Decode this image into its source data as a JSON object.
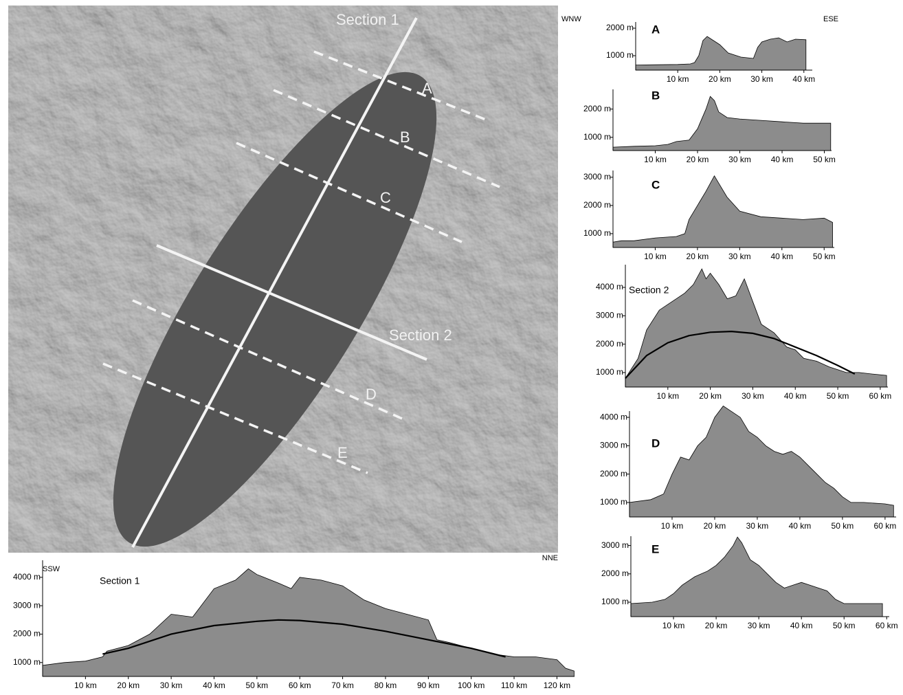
{
  "map": {
    "section_1": "Section 1",
    "section_2": "Section 2",
    "profile_labels": [
      "A",
      "B",
      "C",
      "D",
      "E"
    ]
  },
  "chart_data": [
    {
      "type": "area",
      "title": "A",
      "annotations": [
        "WNW",
        "ESE"
      ],
      "xlim": [
        0,
        42
      ],
      "ylim": [
        475,
        2225
      ],
      "xticks": [
        {
          "value": 10,
          "label": "10 km"
        },
        {
          "value": 20,
          "label": "20 km"
        },
        {
          "value": 30,
          "label": "30 km"
        },
        {
          "value": 40,
          "label": "40 km"
        }
      ],
      "yticks": [
        {
          "value": 1000,
          "label": "1000 m"
        },
        {
          "value": 2000,
          "label": "2000 m"
        }
      ],
      "series": [
        {
          "color": "#8c8c8c",
          "x": [
            0,
            5,
            10,
            13,
            14,
            15,
            16,
            17,
            18,
            19,
            20,
            22,
            25,
            28,
            29,
            30,
            32,
            34,
            36,
            38,
            40.5
          ],
          "values": [
            660,
            670,
            680,
            700,
            750,
            1000,
            1550,
            1700,
            1600,
            1500,
            1400,
            1100,
            950,
            900,
            1300,
            1500,
            1600,
            1650,
            1500,
            1600,
            1580
          ]
        }
      ]
    },
    {
      "type": "area",
      "title": "B",
      "xlim": [
        0,
        51.7
      ],
      "ylim": [
        530,
        2700
      ],
      "xticks": [
        {
          "value": 10,
          "label": "10 km"
        },
        {
          "value": 20,
          "label": "20 km"
        },
        {
          "value": 30,
          "label": "30 km"
        },
        {
          "value": 40,
          "label": "40 km"
        },
        {
          "value": 50,
          "label": "50 km"
        }
      ],
      "yticks": [
        {
          "value": 1000,
          "label": "1000 m"
        },
        {
          "value": 2000,
          "label": "2000 m"
        }
      ],
      "series": [
        {
          "color": "#8c8c8c",
          "x": [
            0,
            5,
            10,
            13,
            15,
            18,
            20,
            22,
            23,
            24,
            25,
            27,
            30,
            35,
            40,
            45,
            50,
            51.5
          ],
          "values": [
            650,
            680,
            700,
            750,
            850,
            900,
            1300,
            2000,
            2450,
            2300,
            1900,
            1700,
            1650,
            1600,
            1550,
            1500,
            1500,
            1500
          ]
        }
      ]
    },
    {
      "type": "area",
      "title": "C",
      "xlim": [
        0,
        52.4
      ],
      "ylim": [
        510,
        3240
      ],
      "xticks": [
        {
          "value": 10,
          "label": "10 km"
        },
        {
          "value": 20,
          "label": "20 km"
        },
        {
          "value": 30,
          "label": "30 km"
        },
        {
          "value": 40,
          "label": "40 km"
        },
        {
          "value": 50,
          "label": "50 km"
        }
      ],
      "yticks": [
        {
          "value": 1000,
          "label": "1000 m"
        },
        {
          "value": 2000,
          "label": "2000 m"
        },
        {
          "value": 3000,
          "label": "3000 m"
        }
      ],
      "series": [
        {
          "color": "#8c8c8c",
          "x": [
            0,
            2,
            5,
            10,
            15,
            17,
            18,
            20,
            22,
            24,
            25,
            27,
            30,
            35,
            40,
            45,
            50,
            52
          ],
          "values": [
            700,
            750,
            750,
            850,
            900,
            1000,
            1500,
            2000,
            2500,
            3050,
            2800,
            2300,
            1800,
            1600,
            1550,
            1500,
            1550,
            1400
          ]
        }
      ]
    },
    {
      "type": "area",
      "title": "Section 2",
      "xlim": [
        0,
        61.8
      ],
      "ylim": [
        490,
        4800
      ],
      "xticks": [
        {
          "value": 10,
          "label": "10 km"
        },
        {
          "value": 20,
          "label": "20 km"
        },
        {
          "value": 30,
          "label": "30 km"
        },
        {
          "value": 40,
          "label": "40 km"
        },
        {
          "value": 50,
          "label": "50 km"
        },
        {
          "value": 60,
          "label": "60 km"
        }
      ],
      "yticks": [
        {
          "value": 1000,
          "label": "1000 m"
        },
        {
          "value": 2000,
          "label": "2000 m"
        },
        {
          "value": 3000,
          "label": "3000 m"
        },
        {
          "value": 4000,
          "label": "4000 m"
        }
      ],
      "series": [
        {
          "color": "#8c8c8c",
          "x": [
            0,
            3,
            5,
            8,
            10,
            12,
            14,
            16,
            18,
            19,
            20,
            22,
            24,
            26,
            28,
            30,
            32,
            35,
            38,
            40,
            42,
            45,
            48,
            50,
            52,
            55,
            58,
            61.5
          ],
          "values": [
            800,
            1500,
            2500,
            3200,
            3400,
            3600,
            3800,
            4100,
            4650,
            4300,
            4500,
            4100,
            3600,
            3700,
            4300,
            3500,
            2700,
            2400,
            1900,
            1800,
            1500,
            1400,
            1200,
            1100,
            1000,
            1000,
            950,
            900
          ]
        },
        {
          "color": "#000000",
          "x": [
            0,
            5,
            10,
            15,
            20,
            25,
            30,
            35,
            40,
            45,
            50,
            54
          ],
          "values": [
            800,
            1600,
            2050,
            2300,
            2420,
            2450,
            2380,
            2200,
            1900,
            1600,
            1250,
            950
          ]
        }
      ]
    },
    {
      "type": "area",
      "title": "D",
      "xlim": [
        0,
        62.6
      ],
      "ylim": [
        490,
        4220
      ],
      "xticks": [
        {
          "value": 10,
          "label": "10 km"
        },
        {
          "value": 20,
          "label": "20 km"
        },
        {
          "value": 30,
          "label": "30 km"
        },
        {
          "value": 40,
          "label": "40 km"
        },
        {
          "value": 50,
          "label": "50 km"
        },
        {
          "value": 60,
          "label": "60 km"
        }
      ],
      "yticks": [
        {
          "value": 1000,
          "label": "1000 m"
        },
        {
          "value": 2000,
          "label": "2000 m"
        },
        {
          "value": 3000,
          "label": "3000 m"
        },
        {
          "value": 4000,
          "label": "4000 m"
        }
      ],
      "series": [
        {
          "color": "#8c8c8c",
          "x": [
            0,
            5,
            8,
            10,
            12,
            14,
            16,
            18,
            20,
            22,
            24,
            26,
            28,
            30,
            32,
            34,
            36,
            38,
            40,
            42,
            44,
            46,
            48,
            50,
            52,
            55,
            60,
            62
          ],
          "values": [
            1000,
            1100,
            1300,
            2000,
            2600,
            2500,
            3000,
            3300,
            4000,
            4400,
            4200,
            4000,
            3500,
            3300,
            3000,
            2800,
            2700,
            2800,
            2600,
            2300,
            2000,
            1700,
            1500,
            1200,
            1000,
            1000,
            950,
            900
          ]
        }
      ]
    },
    {
      "type": "area",
      "title": "E",
      "xlim": [
        0,
        60.6
      ],
      "ylim": [
        490,
        3330
      ],
      "xticks": [
        {
          "value": 10,
          "label": "10 km"
        },
        {
          "value": 20,
          "label": "20 km"
        },
        {
          "value": 30,
          "label": "30 km"
        },
        {
          "value": 40,
          "label": "40 km"
        },
        {
          "value": 50,
          "label": "50 km"
        },
        {
          "value": 60,
          "label": "60 km"
        }
      ],
      "yticks": [
        {
          "value": 1000,
          "label": "1000 m"
        },
        {
          "value": 2000,
          "label": "2000 m"
        },
        {
          "value": 3000,
          "label": "3000 m"
        }
      ],
      "series": [
        {
          "color": "#8c8c8c",
          "x": [
            0,
            5,
            8,
            10,
            12,
            15,
            18,
            20,
            22,
            24,
            25,
            26,
            28,
            30,
            32,
            34,
            36,
            38,
            40,
            42,
            44,
            46,
            48,
            50,
            55,
            59
          ],
          "values": [
            950,
            1000,
            1100,
            1300,
            1600,
            1900,
            2100,
            2300,
            2600,
            3000,
            3300,
            3100,
            2500,
            2300,
            2000,
            1700,
            1500,
            1600,
            1700,
            1600,
            1500,
            1400,
            1100,
            950,
            950,
            950
          ]
        }
      ]
    },
    {
      "type": "area",
      "title": "Section 1",
      "annotations": [
        "SSW",
        "NNE"
      ],
      "xlim": [
        0,
        124.1
      ],
      "ylim": [
        510,
        4600
      ],
      "xticks": [
        {
          "value": 10,
          "label": "10 km"
        },
        {
          "value": 20,
          "label": "20 km"
        },
        {
          "value": 30,
          "label": "30 km"
        },
        {
          "value": 40,
          "label": "40 km"
        },
        {
          "value": 50,
          "label": "50 km"
        },
        {
          "value": 60,
          "label": "60 km"
        },
        {
          "value": 70,
          "label": "70 km"
        },
        {
          "value": 80,
          "label": "80 km"
        },
        {
          "value": 90,
          "label": "90 km"
        },
        {
          "value": 100,
          "label": "100 km"
        },
        {
          "value": 110,
          "label": "110 km"
        },
        {
          "value": 120,
          "label": "120 km"
        }
      ],
      "yticks": [
        {
          "value": 1000,
          "label": "1000 m"
        },
        {
          "value": 2000,
          "label": "2000 m"
        },
        {
          "value": 3000,
          "label": "3000 m"
        },
        {
          "value": 4000,
          "label": "4000 m"
        }
      ],
      "series": [
        {
          "color": "#8c8c8c",
          "x": [
            0,
            5,
            10,
            14,
            15,
            20,
            25,
            30,
            35,
            40,
            45,
            48,
            50,
            55,
            58,
            60,
            65,
            70,
            75,
            80,
            85,
            90,
            92,
            95,
            100,
            105,
            110,
            115,
            120,
            122,
            124
          ],
          "values": [
            900,
            1000,
            1050,
            1200,
            1400,
            1600,
            2000,
            2700,
            2600,
            3600,
            3900,
            4300,
            4100,
            3800,
            3600,
            4000,
            3900,
            3700,
            3200,
            2900,
            2700,
            2500,
            1800,
            1700,
            1500,
            1300,
            1200,
            1200,
            1100,
            800,
            700
          ]
        },
        {
          "color": "#000000",
          "x": [
            14,
            20,
            30,
            40,
            50,
            55,
            60,
            70,
            80,
            90,
            100,
            108
          ],
          "values": [
            1300,
            1500,
            2000,
            2300,
            2450,
            2500,
            2480,
            2350,
            2100,
            1800,
            1500,
            1200
          ]
        }
      ]
    }
  ]
}
